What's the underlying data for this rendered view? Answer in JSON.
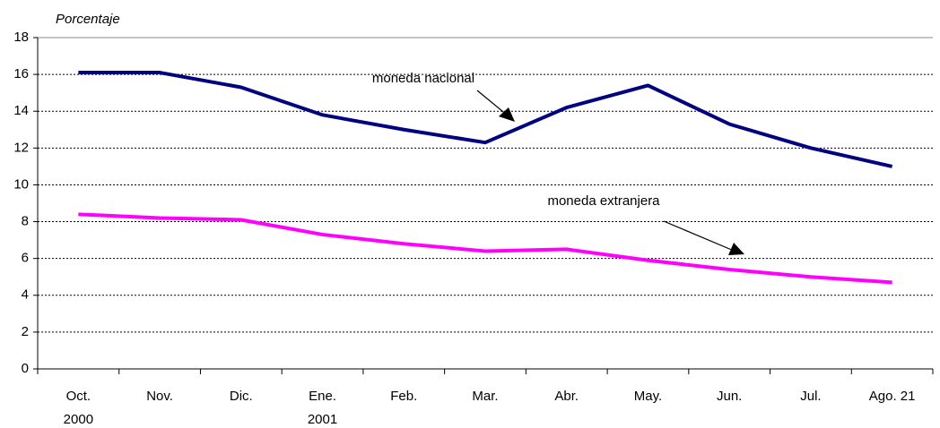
{
  "chart_data": {
    "type": "line",
    "y_label": "Porcentaje",
    "categories": [
      "Oct.",
      "Nov.",
      "Dic.",
      "Ene.",
      "Feb.",
      "Mar.",
      "Abr.",
      "May.",
      "Jun.",
      "Jul.",
      "Ago. 21"
    ],
    "category_years": [
      "2000",
      null,
      null,
      "2001",
      null,
      null,
      null,
      null,
      null,
      null,
      null
    ],
    "series": [
      {
        "name": "moneda nacional",
        "color": "#000080",
        "values": [
          16.1,
          16.1,
          15.3,
          13.8,
          13.0,
          12.3,
          14.2,
          15.4,
          13.3,
          12.0,
          11.0
        ]
      },
      {
        "name": "moneda extranjera",
        "color": "#ff00ff",
        "values": [
          8.4,
          8.2,
          8.1,
          7.3,
          6.8,
          6.4,
          6.5,
          5.9,
          5.4,
          5.0,
          4.7
        ]
      }
    ],
    "ylim": [
      0,
      18
    ],
    "yticks": [
      0,
      2,
      4,
      6,
      8,
      10,
      12,
      14,
      16,
      18
    ],
    "grid": true
  }
}
